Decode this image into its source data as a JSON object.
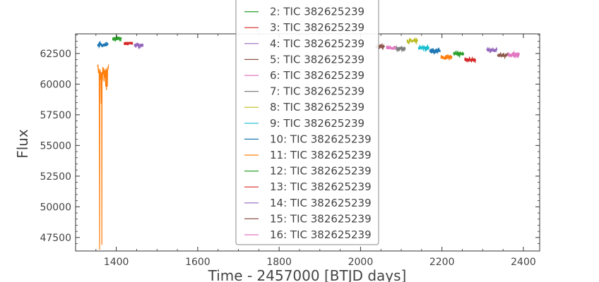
{
  "chart_data": {
    "type": "line",
    "xlabel": "Time - 2457000 [BTJD days]",
    "ylabel": "Flux",
    "xlim": [
      1300,
      2440
    ],
    "ylim": [
      46400,
      64100
    ],
    "grid": false,
    "legend_position": "top-center",
    "x_ticks": [
      {
        "value": 1400,
        "label": "1400"
      },
      {
        "value": 1600,
        "label": "1600"
      },
      {
        "value": 1800,
        "label": "1800"
      },
      {
        "value": 2000,
        "label": "2000"
      },
      {
        "value": 2200,
        "label": "2200"
      },
      {
        "value": 2400,
        "label": "2400"
      }
    ],
    "y_ticks": [
      {
        "value": 47500,
        "label": "47500"
      },
      {
        "value": 50000,
        "label": "50000"
      },
      {
        "value": 52500,
        "label": "52500"
      },
      {
        "value": 55000,
        "label": "55000"
      },
      {
        "value": 57500,
        "label": "57500"
      },
      {
        "value": 60000,
        "label": "60000"
      },
      {
        "value": 62500,
        "label": "62500"
      }
    ],
    "series": [
      {
        "name": "2: TIC 382625239",
        "color": "#2ca02c",
        "segments": [
          [
            1392,
            1412,
            63700
          ]
        ]
      },
      {
        "name": "3: TIC 382625239",
        "color": "#d62728",
        "segments": [
          [
            1420,
            1440,
            63320
          ]
        ]
      },
      {
        "name": "4: TIC 382625239",
        "color": "#9467bd",
        "segments": [
          [
            1445,
            1465,
            63180
          ]
        ]
      },
      {
        "name": "5: TIC 382625239",
        "color": "#8c564b",
        "segments": [
          [
            2038,
            2058,
            63050
          ]
        ]
      },
      {
        "name": "6: TIC 382625239",
        "color": "#e377c2",
        "segments": [
          [
            2064,
            2085,
            62950
          ]
        ]
      },
      {
        "name": "7: TIC 382625239",
        "color": "#7f7f7f",
        "segments": [
          [
            2088,
            2110,
            62900
          ]
        ]
      },
      {
        "name": "8: TIC 382625239",
        "color": "#bcbd22",
        "segments": [
          [
            2115,
            2140,
            63500
          ]
        ]
      },
      {
        "name": "9: TIC 382625239",
        "color": "#17becf",
        "segments": [
          [
            2143,
            2168,
            62950
          ]
        ]
      },
      {
        "name": "10: TIC 382625239",
        "color": "#1f77b4",
        "segments": [
          [
            1355,
            1380,
            63200
          ],
          [
            2170,
            2195,
            62700
          ]
        ]
      },
      {
        "name": "11: TIC 382625239",
        "color": "#ff7f0e",
        "segments": [
          [
            2198,
            2225,
            62200
          ]
        ]
      },
      {
        "name": "12: TIC 382625239",
        "color": "#2ca02c",
        "segments": [
          [
            2228,
            2253,
            62450
          ]
        ]
      },
      {
        "name": "13: TIC 382625239",
        "color": "#d62728",
        "segments": [
          [
            2256,
            2282,
            62000
          ]
        ]
      },
      {
        "name": "14: TIC 382625239",
        "color": "#9467bd",
        "segments": [
          [
            2310,
            2335,
            62750
          ]
        ]
      },
      {
        "name": "15: TIC 382625239",
        "color": "#8c564b",
        "segments": [
          [
            2337,
            2362,
            62350
          ]
        ]
      },
      {
        "name": "16: TIC 382625239",
        "color": "#e377c2",
        "segments": [
          [
            2362,
            2390,
            62400
          ]
        ]
      }
    ],
    "extra_series": [
      {
        "color": "#ff7f0e",
        "points": [
          [
            1354,
            61400
          ],
          [
            1355,
            61600
          ],
          [
            1356,
            60900
          ],
          [
            1357,
            61300
          ],
          [
            1358,
            61000
          ],
          [
            1359,
            46500
          ],
          [
            1359.6,
            60600
          ],
          [
            1360.5,
            61200
          ],
          [
            1361,
            60400
          ],
          [
            1362,
            61000
          ],
          [
            1363,
            58400
          ],
          [
            1364,
            60900
          ],
          [
            1364.5,
            46900
          ],
          [
            1365,
            61000
          ],
          [
            1366,
            60300
          ],
          [
            1367,
            61400
          ],
          [
            1368,
            60800
          ],
          [
            1369,
            61300
          ],
          [
            1370,
            60200
          ],
          [
            1371,
            61200
          ],
          [
            1372,
            60500
          ],
          [
            1373,
            61100
          ],
          [
            1374,
            59800
          ],
          [
            1375,
            61300
          ],
          [
            1376,
            59500
          ],
          [
            1377,
            61200
          ],
          [
            1378,
            59800
          ],
          [
            1379,
            61400
          ],
          [
            1380,
            61200
          ],
          [
            1381,
            61600
          ]
        ]
      }
    ]
  }
}
